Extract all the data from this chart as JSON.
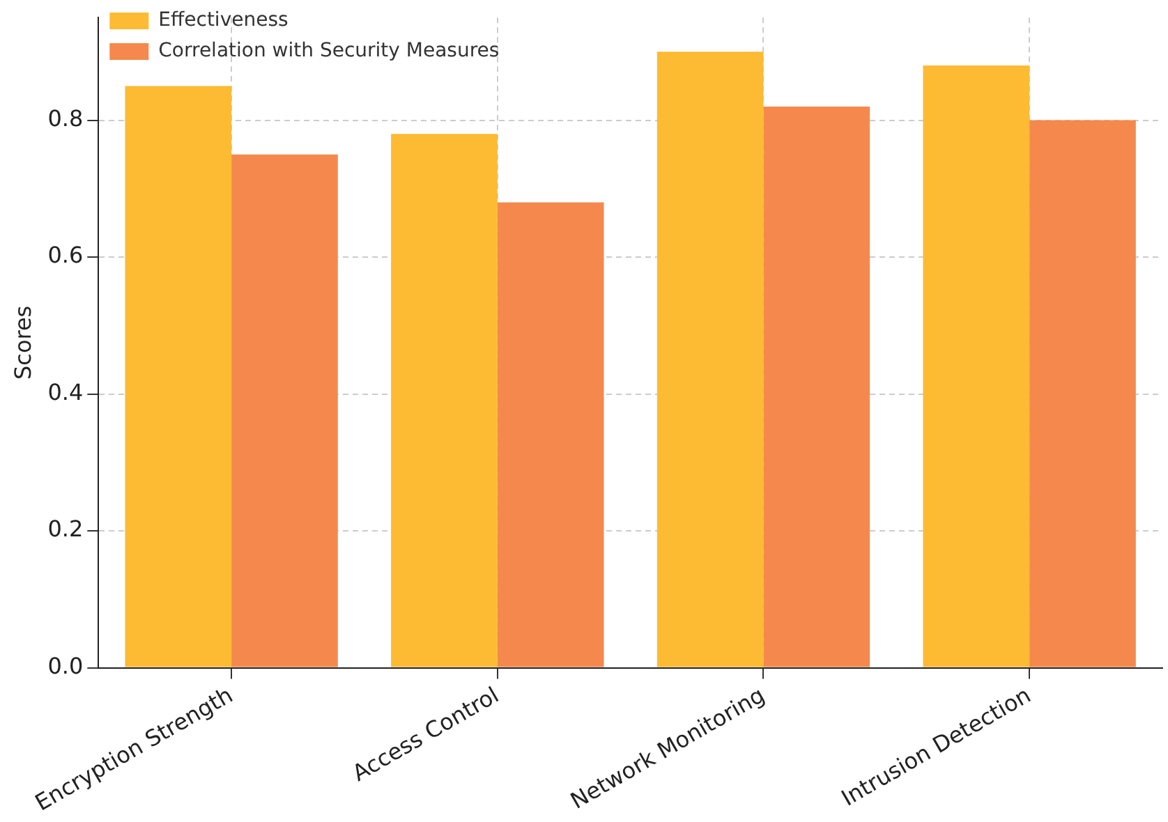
{
  "chart_data": {
    "type": "bar",
    "ylabel": "Scores",
    "categories": [
      "Encryption Strength",
      "Access Control",
      "Network Monitoring",
      "Intrusion Detection"
    ],
    "series": [
      {
        "name": "Effectiveness",
        "color": "#fdbb33",
        "values": [
          0.85,
          0.78,
          0.9,
          0.88
        ]
      },
      {
        "name": "Correlation with Security Measures",
        "color": "#f5894d",
        "values": [
          0.75,
          0.68,
          0.82,
          0.8
        ]
      }
    ],
    "ylim": [
      0,
      0.95
    ],
    "yticks": [
      {
        "value": 0,
        "label": "0.0"
      },
      0.2,
      0.4,
      0.6,
      0.8
    ],
    "grid": true,
    "legend": "top left"
  }
}
